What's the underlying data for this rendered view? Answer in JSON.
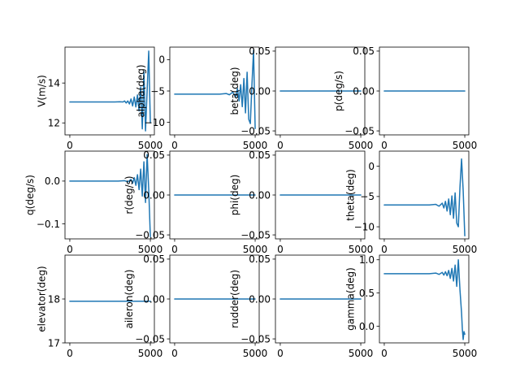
{
  "line_color": "#1f77b4",
  "chart_data": [
    {
      "type": "line",
      "ylabel": "V(m/s)",
      "xlim": [
        -300,
        5250
      ],
      "ylim": [
        11.4,
        15.8
      ],
      "xticks": [
        0,
        5000
      ],
      "xtick_labels": [
        "0",
        "5000"
      ],
      "yticks": [
        12,
        14
      ],
      "ytick_labels": [
        "12",
        "14"
      ],
      "x": [
        0,
        2800,
        3100,
        3300,
        3400,
        3500,
        3600,
        3700,
        3800,
        3900,
        4000,
        4100,
        4200,
        4300,
        4400,
        4500,
        4600,
        4700,
        4800,
        4900,
        5000
      ],
      "values": [
        13.05,
        13.05,
        13.06,
        13.05,
        13.1,
        13.0,
        13.1,
        12.95,
        13.2,
        12.85,
        13.3,
        12.8,
        13.4,
        12.6,
        13.8,
        11.7,
        14.6,
        11.6,
        13.6,
        15.6,
        12.0
      ]
    },
    {
      "type": "line",
      "ylabel": "alpha(deg)",
      "xlim": [
        -300,
        5250
      ],
      "ylim": [
        -12,
        2
      ],
      "xticks": [
        0,
        5000
      ],
      "xtick_labels": [
        "0",
        "5000"
      ],
      "yticks": [
        0,
        -5,
        -10
      ],
      "ytick_labels": [
        "0",
        "−5",
        "−10"
      ],
      "x": [
        0,
        2800,
        3200,
        3400,
        3600,
        3800,
        3900,
        4000,
        4100,
        4200,
        4300,
        4400,
        4500,
        4600,
        4700,
        4800,
        4900,
        5000
      ],
      "values": [
        -5.5,
        -5.5,
        -5.4,
        -5.6,
        -5.2,
        -5.9,
        -4.6,
        -6.6,
        -4.0,
        -7.5,
        -3.0,
        -8.5,
        -2.0,
        -9.5,
        -10.2,
        -4.0,
        1.5,
        -11.0
      ]
    },
    {
      "type": "line",
      "ylabel": "beta(deg)",
      "xlim": [
        -300,
        5250
      ],
      "ylim": [
        -0.055,
        0.055
      ],
      "xticks": [
        0,
        5000
      ],
      "xtick_labels": [
        "0",
        "5000"
      ],
      "yticks": [
        0.05,
        0,
        -0.05
      ],
      "ytick_labels": [
        "0.05",
        "0.00",
        "−0.05"
      ],
      "x": [
        0,
        5000
      ],
      "values": [
        0,
        0
      ]
    },
    {
      "type": "line",
      "ylabel": "p(deg/s)",
      "xlim": [
        -300,
        5250
      ],
      "ylim": [
        -0.055,
        0.055
      ],
      "xticks": [
        0,
        5000
      ],
      "xtick_labels": [
        "0",
        "5000"
      ],
      "yticks": [
        0.05,
        0,
        -0.05
      ],
      "ytick_labels": [
        "0.05",
        "0.00",
        "−0.05"
      ],
      "x": [
        0,
        5000
      ],
      "values": [
        0,
        0
      ]
    },
    {
      "type": "line",
      "ylabel": "q(deg/s)",
      "xlim": [
        -300,
        5250
      ],
      "ylim": [
        -0.135,
        0.07
      ],
      "xticks": [
        0,
        5000
      ],
      "xtick_labels": [
        "0",
        "5000"
      ],
      "yticks": [
        0,
        -0.1
      ],
      "ytick_labels": [
        "0.0",
        "−0.1"
      ],
      "x": [
        0,
        3000,
        3400,
        3600,
        3800,
        3900,
        4000,
        4100,
        4200,
        4300,
        4400,
        4500,
        4600,
        4700,
        4800,
        4900,
        5000
      ],
      "values": [
        0,
        0,
        0.001,
        -0.002,
        0.004,
        -0.005,
        0.008,
        -0.01,
        0.015,
        -0.02,
        0.028,
        -0.035,
        0.045,
        -0.05,
        0.062,
        -0.02,
        -0.13
      ]
    },
    {
      "type": "line",
      "ylabel": "r(deg/s)",
      "xlim": [
        -300,
        5250
      ],
      "ylim": [
        -0.055,
        0.055
      ],
      "xticks": [
        0,
        5000
      ],
      "xtick_labels": [
        "0",
        "5000"
      ],
      "yticks": [
        0.05,
        0,
        -0.05
      ],
      "ytick_labels": [
        "0.05",
        "0.00",
        "−0.05"
      ],
      "x": [
        0,
        5000
      ],
      "values": [
        0,
        0
      ]
    },
    {
      "type": "line",
      "ylabel": "phi(deg)",
      "xlim": [
        -300,
        5250
      ],
      "ylim": [
        -0.055,
        0.055
      ],
      "xticks": [
        0,
        5000
      ],
      "xtick_labels": [
        "0",
        "5000"
      ],
      "yticks": [
        0.05,
        0,
        -0.05
      ],
      "ytick_labels": [
        "0.05",
        "0.00",
        "−0.05"
      ],
      "x": [
        0,
        5000
      ],
      "values": [
        0,
        0
      ]
    },
    {
      "type": "line",
      "ylabel": "theta(deg)",
      "xlim": [
        -300,
        5250
      ],
      "ylim": [
        -12,
        2.5
      ],
      "xticks": [
        0,
        5000
      ],
      "xtick_labels": [
        "0",
        "5000"
      ],
      "yticks": [
        0,
        -5,
        -10
      ],
      "ytick_labels": [
        "0",
        "−5",
        "−10"
      ],
      "x": [
        0,
        2800,
        3200,
        3400,
        3600,
        3700,
        3800,
        3900,
        4000,
        4100,
        4200,
        4300,
        4400,
        4500,
        4600,
        4700,
        4800,
        4900,
        5000
      ],
      "values": [
        -6.4,
        -6.4,
        -6.3,
        -6.6,
        -6.1,
        -6.9,
        -5.8,
        -7.4,
        -5.4,
        -8.0,
        -4.9,
        -8.6,
        -4.4,
        -9.4,
        -10.0,
        -3.5,
        1.2,
        -4.0,
        -11.5
      ]
    },
    {
      "type": "line",
      "ylabel": "elevator(deg)",
      "xlim": [
        -300,
        5250
      ],
      "ylim": [
        17.0,
        19.0
      ],
      "xticks": [
        0,
        5000
      ],
      "xtick_labels": [
        "0",
        "5000"
      ],
      "yticks": [
        17,
        18
      ],
      "ytick_labels": [
        "17",
        "18"
      ],
      "x": [
        0,
        5000
      ],
      "values": [
        17.95,
        17.95
      ]
    },
    {
      "type": "line",
      "ylabel": "aileron(deg)",
      "xlim": [
        -300,
        5250
      ],
      "ylim": [
        -0.055,
        0.055
      ],
      "xticks": [
        0,
        5000
      ],
      "xtick_labels": [
        "0",
        "5000"
      ],
      "yticks": [
        0.05,
        0,
        -0.05
      ],
      "ytick_labels": [
        "0.05",
        "0.00",
        "−0.05"
      ],
      "x": [
        0,
        5000
      ],
      "values": [
        0,
        0
      ]
    },
    {
      "type": "line",
      "ylabel": "rudder(deg)",
      "xlim": [
        -300,
        5250
      ],
      "ylim": [
        -0.055,
        0.055
      ],
      "xticks": [
        0,
        5000
      ],
      "xtick_labels": [
        "0",
        "5000"
      ],
      "yticks": [
        0.05,
        0,
        -0.05
      ],
      "ytick_labels": [
        "0.05",
        "0.00",
        "−0.05"
      ],
      "x": [
        0,
        5000
      ],
      "values": [
        0,
        0
      ]
    },
    {
      "type": "line",
      "ylabel": "gamma(deg)",
      "xlim": [
        -300,
        5250
      ],
      "ylim": [
        -0.25,
        1.07
      ],
      "xticks": [
        0,
        5000
      ],
      "xtick_labels": [
        "0",
        "5000"
      ],
      "yticks": [
        1.0,
        0.5,
        0.0
      ],
      "ytick_labels": [
        "1.0",
        "0.5",
        "0.0"
      ],
      "x": [
        0,
        2800,
        3200,
        3400,
        3600,
        3700,
        3800,
        3900,
        4000,
        4100,
        4200,
        4300,
        4400,
        4500,
        4600,
        4700,
        4800,
        4850,
        4900,
        4950,
        5000
      ],
      "values": [
        0.79,
        0.79,
        0.8,
        0.78,
        0.81,
        0.77,
        0.82,
        0.76,
        0.84,
        0.72,
        0.87,
        0.68,
        0.92,
        0.6,
        1.0,
        0.55,
        0.2,
        -0.05,
        -0.2,
        -0.08,
        -0.12
      ]
    }
  ]
}
